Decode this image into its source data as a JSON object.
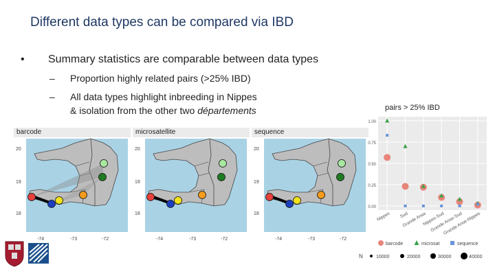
{
  "slide": {
    "title": "Different data types can be compared via IBD",
    "bullet_symbol": "•",
    "bullet_main": "Summary statistics are comparable between data types",
    "sub_dash": "–",
    "sub1": "Proportion highly related pairs (>25% IBD)",
    "sub2_part1": "All data types highlight inbreeding in Nippes",
    "sub2_part2": "& isolation from the other two ",
    "sub2_italic": "départements"
  },
  "maps": {
    "panels": [
      {
        "title": "barcode"
      },
      {
        "title": "microsatellite"
      },
      {
        "title": "sequence"
      }
    ],
    "y_ticks": [
      "20",
      "19",
      "18"
    ],
    "x_ticks": [
      "-74",
      "-73",
      "-72"
    ],
    "site_colors": [
      "#e8413c",
      "#1b3fbf",
      "#f2e31b",
      "#f59b1b",
      "#1e7b22",
      "#a8e8a0"
    ]
  },
  "chart_data": {
    "type": "scatter",
    "title": "pairs > 25% IBD",
    "categories": [
      "Nippes",
      "Sud",
      "Grande Anse",
      "Nippes-Sud",
      "Grande Anse-Sud",
      "Grande Anse-Nippes"
    ],
    "y_ticks": [
      "1.00",
      "0.75",
      "0.50",
      "0.25",
      "0.00"
    ],
    "ylim": [
      0,
      1
    ],
    "series": [
      {
        "name": "barcode",
        "shape": "circle",
        "color": "#e8847a",
        "values": [
          0.57,
          0.23,
          0.22,
          0.1,
          0.05,
          0.01
        ]
      },
      {
        "name": "microsat",
        "shape": "triangle",
        "color": "#3aa24a",
        "values": [
          1.0,
          0.7,
          0.23,
          0.12,
          0.08,
          0.03
        ]
      },
      {
        "name": "sequence",
        "shape": "square",
        "color": "#6b93d9",
        "values": [
          0.83,
          0.0,
          0.0,
          0.0,
          0.0,
          0.02
        ]
      }
    ],
    "size_legend_label": "N",
    "size_legend": [
      "10000",
      "20000",
      "30000",
      "40000"
    ]
  }
}
